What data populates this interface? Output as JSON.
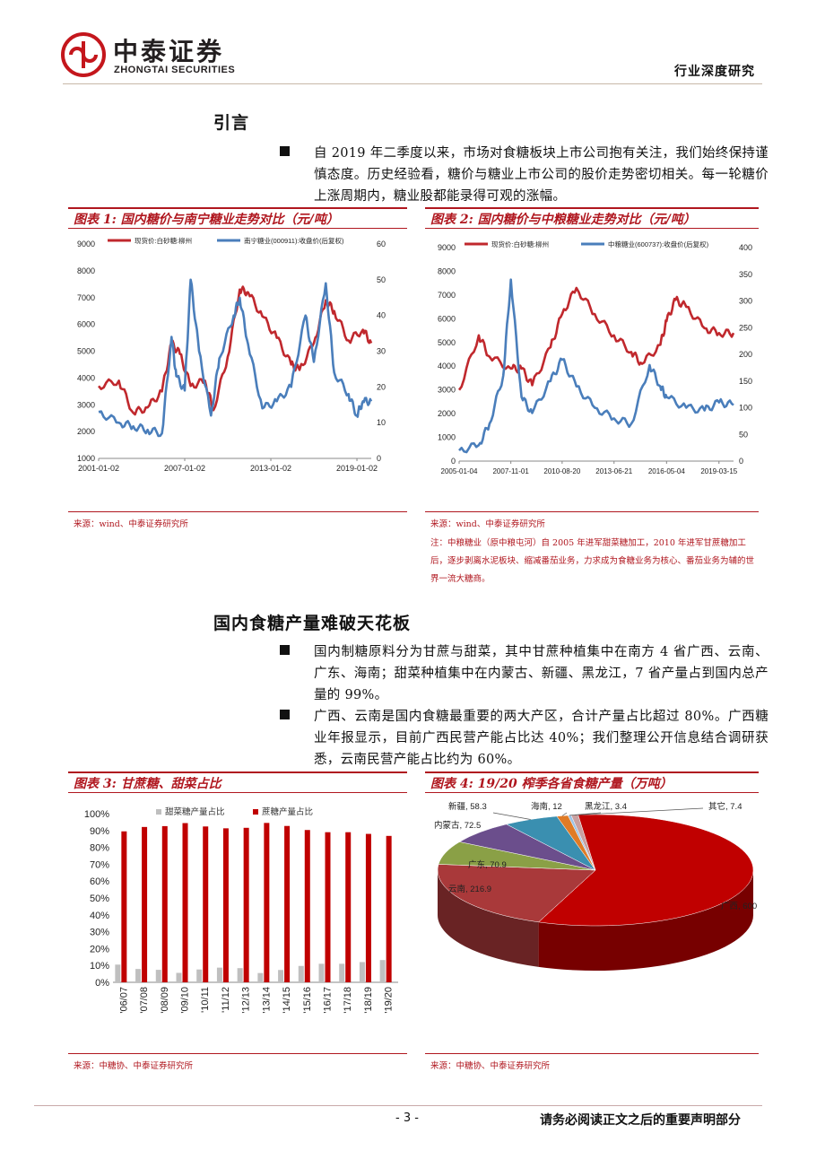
{
  "header": {
    "logo_cn": "中泰证券",
    "logo_en": "ZHONGTAI SECURITIES",
    "report_type": "行业深度研究"
  },
  "sections": [
    {
      "title": "引言",
      "bullets": [
        "自 2019 年二季度以来，市场对食糖板块上市公司抱有关注，我们始终保持谨慎态度。历史经验看，糖价与糖业上市公司的股价走势密切相关。每一轮糖价上涨周期内，糖业股都能录得可观的涨幅。"
      ]
    },
    {
      "title": "国内食糖产量难破天花板",
      "bullets": [
        "国内制糖原料分为甘蔗与甜菜，其中甘蔗种植集中在南方 4 省广西、云南、广东、海南；甜菜种植集中在内蒙古、新疆、黑龙江，7 省产量占到国内总产量的 99%。",
        "广西、云南是国内食糖最重要的两大产区，合计产量占比超过 80%。广西糖业年报显示，目前广西民营产能占比达 40%；我们整理公开信息结合调研获悉，云南民营产能占比约为 60%。"
      ]
    }
  ],
  "figures": {
    "fig1": {
      "title": "图表 1:  国内糖价与南宁糖业走势对比（元/吨）",
      "source": "来源：wind、中泰证券研究所"
    },
    "fig2": {
      "title": "图表 2:  国内糖价与中粮糖业走势对比（元/吨）",
      "source": "来源：wind、中泰证券研究所",
      "note": "注：中粮糖业（原中粮屯河）自 2005 年进军甜菜糖加工，2010 年进军甘蔗糖加工后，逐步剥离水泥板块、缩减番茄业务，力求成为食糖业务为核心、番茄业务为辅的世界一流大糖商。"
    },
    "fig3": {
      "title": "图表 3:  甘蔗糖、甜菜占比",
      "source": "来源：中糖协、中泰证券研究所"
    },
    "fig4": {
      "title": "图表 4:  19/20 榨季各省食糖产量（万吨）",
      "source": "来源：中糖协、中泰证券研究所"
    }
  },
  "chart_data": [
    {
      "type": "line",
      "series": [
        {
          "name": "现货价:白砂糖:柳州",
          "axis": "left",
          "color": "#c0282d",
          "x": [
            "2001-01-02",
            "2002-06",
            "2003-06",
            "2004-06",
            "2005-06",
            "2006-02",
            "2006-09",
            "2007-06",
            "2008-06",
            "2009-01",
            "2010-01",
            "2010-11",
            "2011-06",
            "2012-06",
            "2013-06",
            "2014-06",
            "2015-01",
            "2016-01",
            "2016-11",
            "2017-06",
            "2018-06",
            "2019-06",
            "2020-01"
          ],
          "values": [
            3700,
            3900,
            2700,
            2900,
            3500,
            5300,
            4900,
            3700,
            3900,
            2800,
            4800,
            7300,
            7200,
            6300,
            5500,
            4500,
            4300,
            5300,
            6900,
            6500,
            5400,
            5800,
            5300
          ]
        },
        {
          "name": "南宁糖业(000911):收盘价(后复权)",
          "axis": "right",
          "color": "#4a7ebb",
          "x": [
            "2001-01-02",
            "2002-06",
            "2003-06",
            "2004-06",
            "2005-06",
            "2006-02",
            "2006-06",
            "2007-01",
            "2007-06",
            "2008-01",
            "2008-11",
            "2009-06",
            "2010-06",
            "2010-11",
            "2011-06",
            "2012-06",
            "2013-06",
            "2014-06",
            "2015-06",
            "2016-01",
            "2016-11",
            "2017-06",
            "2018-06",
            "2019-01",
            "2019-06",
            "2020-01"
          ],
          "values": [
            13,
            10,
            9,
            8,
            7,
            34,
            23,
            19,
            50,
            30,
            12,
            28,
            40,
            45,
            32,
            14,
            16,
            20,
            40,
            27,
            49,
            24,
            18,
            12,
            16,
            16
          ]
        }
      ],
      "x_ticks": [
        "2001-01-02",
        "2007-01-02",
        "2013-01-02",
        "2019-01-02"
      ],
      "ylim_left": [
        1000,
        9000
      ],
      "ylim_right": [
        0,
        60
      ],
      "legend": "top"
    },
    {
      "type": "line",
      "series": [
        {
          "name": "现货价:白砂糖:柳州",
          "axis": "left",
          "color": "#c0282d",
          "x": [
            "2005-01-04",
            "2006-02",
            "2006-09",
            "2007-11-01",
            "2008-06",
            "2009-01",
            "2010-01",
            "2010-08-20",
            "2011-06",
            "2012-06",
            "2013-06-21",
            "2014-06",
            "2015-01",
            "2016-01",
            "2016-05-04",
            "2016-11",
            "2017-06",
            "2018-06",
            "2019-03-15",
            "2020-01"
          ],
          "values": [
            3000,
            5300,
            4400,
            3900,
            3900,
            3200,
            4800,
            6200,
            7300,
            6200,
            5300,
            4600,
            4100,
            4900,
            5900,
            6800,
            6500,
            5600,
            5400,
            5400
          ]
        },
        {
          "name": "中粮糖业(600737):收盘价(后复权)",
          "axis": "right",
          "color": "#4a7ebb",
          "x": [
            "2005-01-04",
            "2006-02",
            "2006-09",
            "2007-06",
            "2007-11-01",
            "2008-06",
            "2009-01",
            "2010-01",
            "2010-08-20",
            "2011-06",
            "2012-06",
            "2013-06-21",
            "2014-06",
            "2015-06",
            "2016-01",
            "2016-05-04",
            "2017-06",
            "2018-06",
            "2019-03-15",
            "2020-01"
          ],
          "values": [
            20,
            30,
            70,
            160,
            340,
            120,
            90,
            150,
            190,
            140,
            100,
            80,
            70,
            180,
            140,
            120,
            100,
            95,
            110,
            105
          ]
        }
      ],
      "x_ticks": [
        "2005-01-04",
        "2007-11-01",
        "2010-08-20",
        "2013-06-21",
        "2016-05-04",
        "2019-03-15"
      ],
      "ylim_left": [
        0,
        9000
      ],
      "ylim_right": [
        0,
        400
      ],
      "legend": "top"
    },
    {
      "type": "bar",
      "categories": [
        "'06/07",
        "'07/08",
        "'08/09",
        "'09/10",
        "'10/11",
        "'11/12",
        "'12/13",
        "'13/14",
        "'14/15",
        "'15/16",
        "'16/17",
        "'17/18",
        "'18/19",
        "'19/20"
      ],
      "series": [
        {
          "name": "甜菜糖产量占比",
          "color": "#bfbfbf",
          "values": [
            10.5,
            7.9,
            7.4,
            5.6,
            7.6,
            8.7,
            8.4,
            5.5,
            7.3,
            9.7,
            11.0,
            11.0,
            12.0,
            13.2
          ]
        },
        {
          "name": "蔗糖产量占比",
          "color": "#c00000",
          "values": [
            89.5,
            92.1,
            92.6,
            94.4,
            92.4,
            91.3,
            91.6,
            94.5,
            92.7,
            90.3,
            89.0,
            89.0,
            88.0,
            86.8
          ]
        }
      ],
      "y_ticks": [
        "0%",
        "10%",
        "20%",
        "30%",
        "40%",
        "50%",
        "60%",
        "70%",
        "80%",
        "90%",
        "100%"
      ],
      "ylim": [
        0,
        100
      ],
      "legend": "top"
    },
    {
      "type": "pie",
      "labels": [
        "广西",
        "云南",
        "广东",
        "内蒙古",
        "新疆",
        "海南",
        "黑龙江",
        "其它"
      ],
      "values": [
        600,
        216.9,
        70.9,
        72.5,
        58.3,
        12,
        3.4,
        7.4
      ],
      "label_texts": [
        "广西, 600",
        "云南, 216.9",
        "广东, 70.9",
        "内蒙古, 72.5",
        "新疆, 58.3",
        "海南, 12",
        "黑龙江, 3.4",
        "其它, 7.4"
      ],
      "colors": [
        "#c00000",
        "#a9393a",
        "#8aa046",
        "#6b4e8c",
        "#3a8fb0",
        "#e07b26",
        "#9dc3e6",
        "#c9a0a0"
      ]
    }
  ],
  "footer": {
    "page_number": "- 3 -",
    "disclaimer": "请务必阅读正文之后的重要声明部分"
  }
}
